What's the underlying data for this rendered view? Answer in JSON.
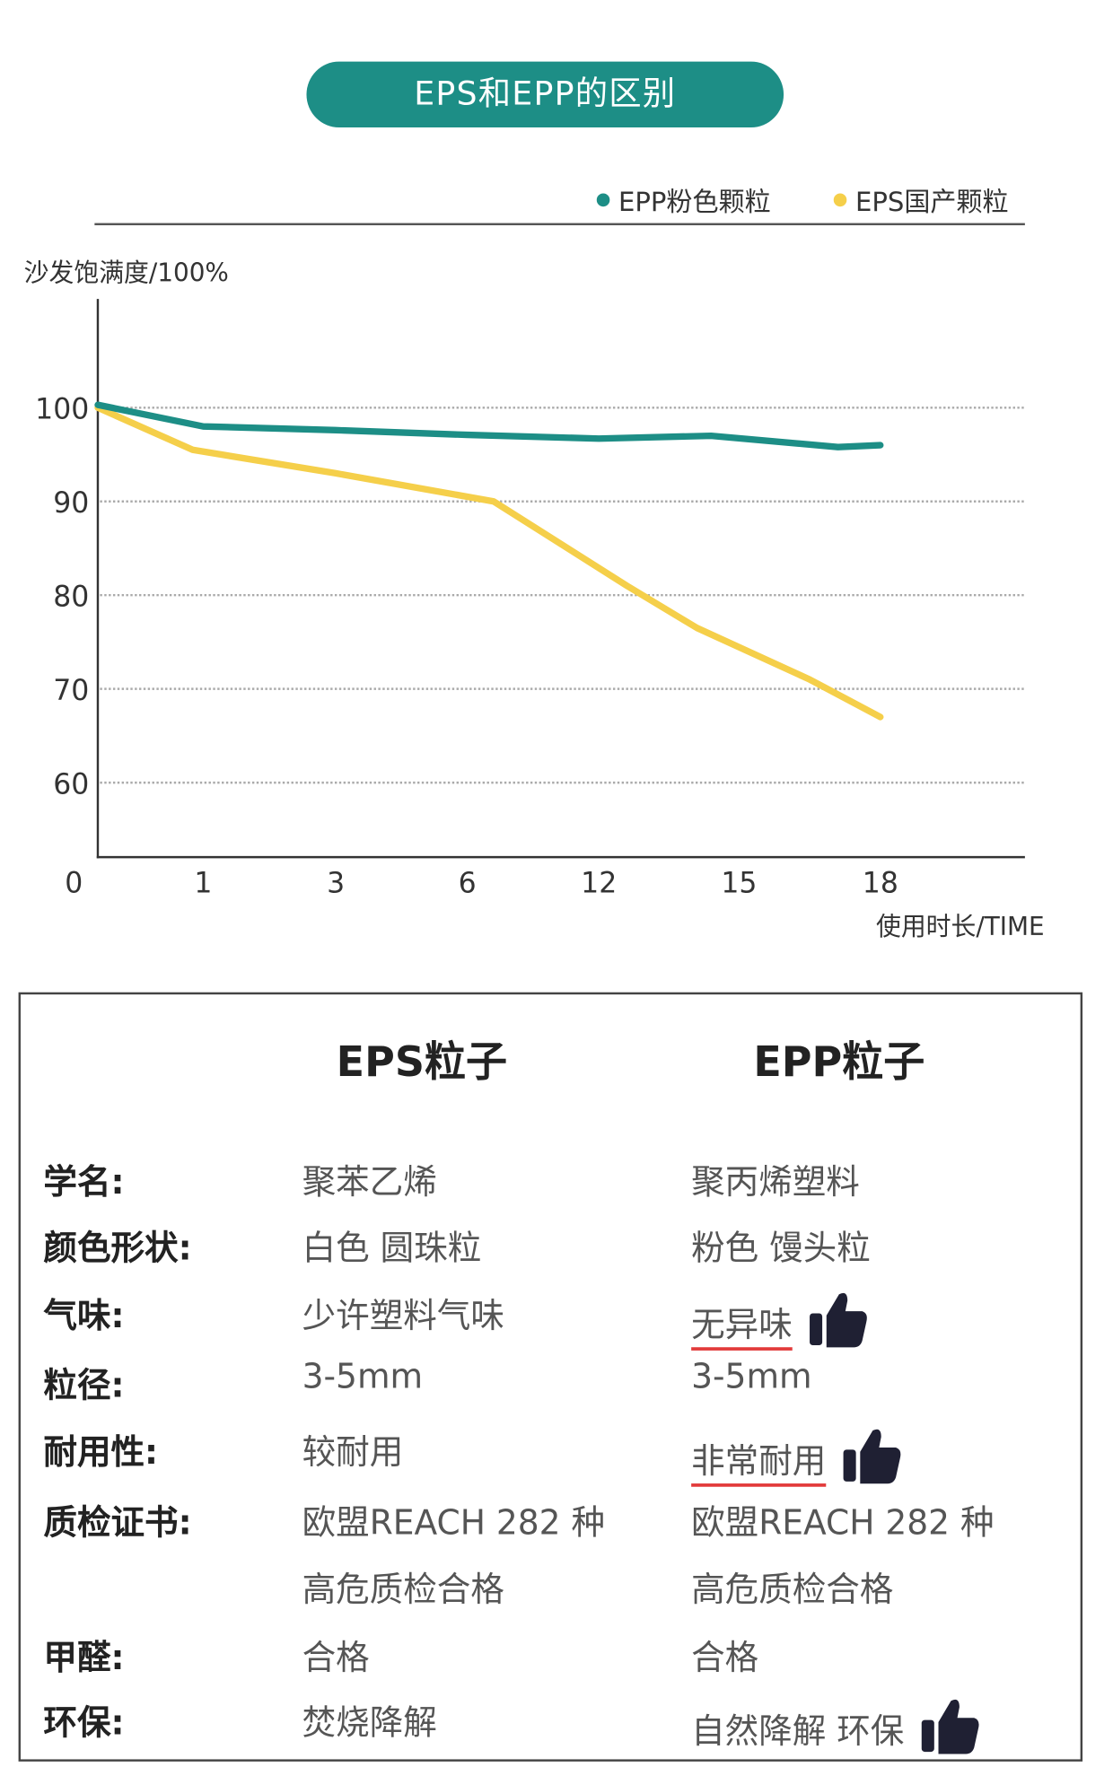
{
  "title": "EPS和EPP的区别",
  "colors": {
    "teal": "#1d8e86",
    "yellow": "#f5cf4a",
    "underline": "#e23a3a"
  },
  "chart_data": {
    "type": "line",
    "title": "EPS和EPP的区别",
    "ylabel": "沙发饱满度/100%",
    "xlabel": "使用时长/TIME",
    "categories": [
      "0",
      "1",
      "3",
      "6",
      "12",
      "15",
      "18"
    ],
    "yticks": [
      100,
      90,
      80,
      70,
      60
    ],
    "ylim": [
      52,
      110
    ],
    "grid": "horizontal dotted",
    "legend_position": "top-right",
    "series": [
      {
        "name": "EPP粉色颗粒",
        "color": "#1d8e86",
        "points": [
          [
            0,
            100.3
          ],
          [
            1,
            98
          ],
          [
            2,
            97.6
          ],
          [
            3,
            97.1
          ],
          [
            4,
            96.7
          ],
          [
            4.8,
            97
          ],
          [
            5.7,
            95.8
          ],
          [
            6,
            96
          ]
        ]
      },
      {
        "name": "EPS国产颗粒",
        "color": "#f5cf4a",
        "points": [
          [
            0,
            100
          ],
          [
            0.9,
            95.5
          ],
          [
            2,
            93
          ],
          [
            3.2,
            90
          ],
          [
            4.2,
            81
          ],
          [
            4.7,
            76.5
          ],
          [
            5.5,
            71
          ],
          [
            6,
            67
          ]
        ]
      }
    ]
  },
  "table": {
    "headers": [
      "EPS粒子",
      "EPP粒子"
    ],
    "rows": [
      {
        "label": "学名:",
        "eps": "聚苯乙烯",
        "epp": "聚丙烯塑料"
      },
      {
        "label": "颜色形状:",
        "eps": "白色  圆珠粒",
        "epp": "粉色  馒头粒"
      },
      {
        "label": "气味:",
        "eps": "少许塑料气味",
        "epp": "无异味",
        "highlight": true
      },
      {
        "label": "粒径:",
        "eps": "3-5mm",
        "epp": "3-5mm"
      },
      {
        "label": "耐用性:",
        "eps": "较耐用",
        "epp": "非常耐用",
        "highlight": true
      },
      {
        "label": "质检证书:",
        "eps": "欧盟REACH 282 种",
        "epp": "欧盟REACH 282 种"
      },
      {
        "label": "",
        "eps": "高危质检合格",
        "epp": "高危质检合格"
      },
      {
        "label": "甲醛:",
        "eps": "合格",
        "epp": "合格"
      },
      {
        "label": "环保:",
        "eps": "焚烧降解",
        "epp": "自然降解   环保",
        "highlight": true
      }
    ]
  }
}
